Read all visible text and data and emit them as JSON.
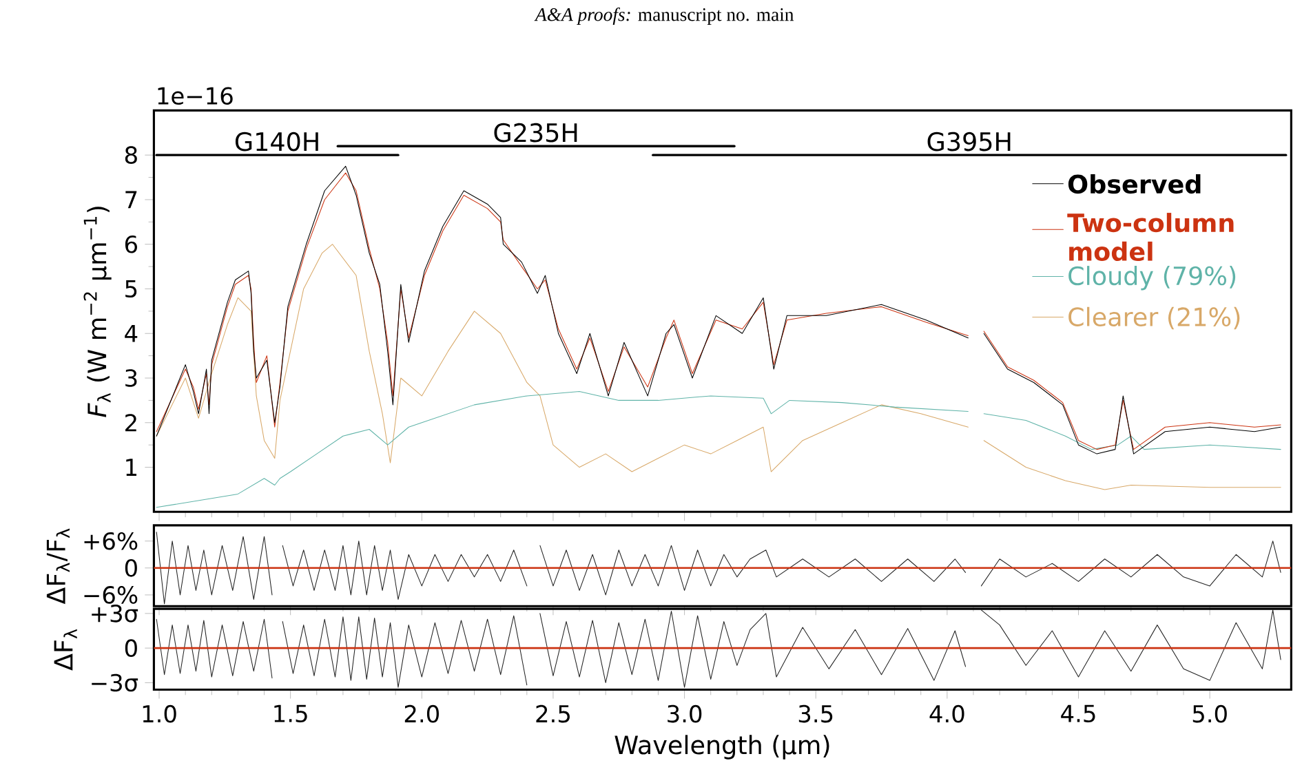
{
  "chart_data": [
    {
      "type": "line",
      "ylabel": "*F*$_{λ}$ (W m$^{−2}$ µm$^{−1}$)",
      "xlim": [
        0.98,
        5.31
      ],
      "ylim": [
        0,
        9
      ],
      "xticks": [
        {
          "value": 1,
          "label": null
        },
        {
          "value": 1.5,
          "label": null
        },
        {
          "value": 2,
          "label": null
        },
        {
          "value": 2.5,
          "label": null
        },
        {
          "value": 3,
          "label": null
        },
        {
          "value": 3.5,
          "label": null
        },
        {
          "value": 4,
          "label": null
        },
        {
          "value": 4.5,
          "label": null
        },
        {
          "value": 5,
          "label": null
        }
      ],
      "yticks": [
        1,
        2,
        3,
        4,
        5,
        6,
        7,
        8
      ],
      "tick_labels": "y",
      "legend": "top right",
      "annotations": [
        "*A&A proofs:* manuscript no. main",
        "1e−16"
      ],
      "series": [
        {
          "name": "G140H",
          "color": "#000000",
          "x": [
            0.99,
            1.91
          ],
          "values": [
            8.0,
            8.0
          ]
        },
        {
          "name": "G235H",
          "color": "#000000",
          "x": [
            1.68,
            3.19
          ],
          "values": [
            8.2,
            8.2
          ]
        },
        {
          "name": "G395H",
          "color": "#000000",
          "x": [
            2.88,
            5.29
          ],
          "values": [
            8.0,
            8.0
          ]
        },
        {
          "name": "Observed",
          "color": "#000000",
          "x": [
            0.99,
            1.1,
            1.13,
            1.15,
            1.18,
            1.19,
            1.2,
            1.26,
            1.29,
            1.34,
            1.35,
            1.36,
            1.37,
            1.41,
            1.44,
            1.46,
            1.49,
            1.56,
            1.63,
            1.71,
            1.75,
            1.8,
            1.84,
            1.87,
            1.89,
            1.92,
            1.95,
            2.01,
            2.08,
            2.16,
            2.25,
            2.3,
            2.31,
            2.38,
            2.44,
            2.47,
            2.52,
            2.59,
            2.64,
            2.71,
            2.77,
            2.86,
            2.93,
            2.96,
            3.03,
            3.12,
            3.22,
            3.3,
            3.34,
            3.39,
            3.54,
            3.75,
            3.92,
            4.08,
            4.11,
            4.14,
            4.23,
            4.33,
            4.44,
            4.5,
            4.57,
            4.64,
            4.67,
            4.71,
            4.83,
            5.0,
            5.17,
            5.27
          ],
          "values": [
            1.7,
            3.3,
            2.7,
            2.2,
            3.2,
            2.2,
            3.4,
            4.7,
            5.2,
            5.4,
            4.9,
            3.6,
            3.0,
            3.4,
            2.0,
            2.8,
            4.6,
            6.0,
            7.2,
            7.75,
            7.1,
            5.8,
            5.1,
            3.6,
            2.4,
            5.1,
            3.8,
            5.4,
            6.4,
            7.2,
            6.9,
            6.6,
            6.0,
            5.6,
            4.9,
            5.3,
            4.0,
            3.1,
            4.0,
            2.6,
            3.8,
            2.6,
            4.0,
            4.2,
            3.0,
            4.4,
            4.0,
            4.8,
            3.2,
            4.4,
            4.4,
            4.65,
            4.3,
            3.9,
            null,
            4.0,
            3.2,
            2.9,
            2.4,
            1.5,
            1.3,
            1.4,
            2.6,
            1.3,
            1.8,
            1.9,
            1.8,
            1.9
          ]
        },
        {
          "name": "Two-column model",
          "color": "#cc3311",
          "x": [
            0.99,
            1.1,
            1.13,
            1.15,
            1.18,
            1.19,
            1.2,
            1.26,
            1.29,
            1.34,
            1.35,
            1.36,
            1.37,
            1.41,
            1.44,
            1.46,
            1.49,
            1.56,
            1.63,
            1.71,
            1.75,
            1.8,
            1.84,
            1.87,
            1.89,
            1.92,
            1.95,
            2.01,
            2.08,
            2.16,
            2.25,
            2.3,
            2.31,
            2.38,
            2.44,
            2.47,
            2.52,
            2.59,
            2.64,
            2.71,
            2.77,
            2.86,
            2.93,
            2.96,
            3.03,
            3.12,
            3.22,
            3.3,
            3.34,
            3.39,
            3.54,
            3.75,
            3.92,
            4.08,
            4.11,
            4.14,
            4.23,
            4.33,
            4.44,
            4.5,
            4.57,
            4.64,
            4.67,
            4.71,
            4.83,
            5.0,
            5.17,
            5.27
          ],
          "values": [
            1.8,
            3.2,
            2.8,
            2.3,
            3.1,
            2.4,
            3.3,
            4.6,
            5.1,
            5.3,
            5.0,
            3.8,
            2.9,
            3.5,
            1.9,
            2.9,
            4.5,
            5.9,
            7.0,
            7.6,
            7.2,
            5.9,
            5.0,
            3.8,
            2.6,
            5.0,
            3.9,
            5.3,
            6.3,
            7.1,
            6.8,
            6.5,
            6.1,
            5.5,
            5.0,
            5.2,
            4.1,
            3.2,
            3.9,
            2.7,
            3.7,
            2.8,
            3.9,
            4.3,
            3.1,
            4.3,
            4.1,
            4.7,
            3.3,
            4.3,
            4.45,
            4.6,
            4.25,
            3.95,
            null,
            4.05,
            3.25,
            2.95,
            2.45,
            1.6,
            1.4,
            1.5,
            2.5,
            1.4,
            1.9,
            2.0,
            1.9,
            1.95
          ]
        },
        {
          "name": "Cloudy (79%)",
          "color": "#5fb3a8",
          "x": [
            0.99,
            1.3,
            1.4,
            1.44,
            1.46,
            1.5,
            1.6,
            1.7,
            1.8,
            1.87,
            1.95,
            2.0,
            2.2,
            2.4,
            2.6,
            2.75,
            2.9,
            3.1,
            3.3,
            3.33,
            3.4,
            3.6,
            3.8,
            4.08,
            4.11,
            4.14,
            4.3,
            4.45,
            4.55,
            4.65,
            4.7,
            4.75,
            5.0,
            5.27
          ],
          "values": [
            0.1,
            0.4,
            0.75,
            0.6,
            0.75,
            0.9,
            1.3,
            1.7,
            1.85,
            1.5,
            1.9,
            2.0,
            2.4,
            2.6,
            2.7,
            2.5,
            2.5,
            2.6,
            2.55,
            2.2,
            2.5,
            2.45,
            2.35,
            2.25,
            null,
            2.2,
            2.05,
            1.7,
            1.4,
            1.5,
            1.7,
            1.4,
            1.5,
            1.4
          ]
        },
        {
          "name": "Clearer (21%)",
          "color": "#d8a868",
          "x": [
            0.99,
            1.1,
            1.15,
            1.2,
            1.26,
            1.3,
            1.35,
            1.37,
            1.4,
            1.44,
            1.46,
            1.55,
            1.62,
            1.66,
            1.75,
            1.8,
            1.85,
            1.88,
            1.92,
            2.0,
            2.1,
            2.2,
            2.3,
            2.4,
            2.45,
            2.5,
            2.6,
            2.7,
            2.8,
            2.9,
            3.0,
            3.1,
            3.2,
            3.3,
            3.33,
            3.45,
            3.6,
            3.75,
            3.9,
            4.08,
            4.11,
            4.14,
            4.3,
            4.45,
            4.6,
            4.7,
            5.0,
            5.27
          ],
          "values": [
            1.7,
            3.0,
            2.1,
            3.1,
            4.2,
            4.8,
            4.5,
            2.6,
            1.6,
            1.2,
            2.5,
            5.0,
            5.8,
            6.0,
            5.3,
            3.6,
            2.2,
            1.1,
            3.0,
            2.6,
            3.6,
            4.5,
            4.0,
            2.9,
            2.6,
            1.5,
            1.0,
            1.3,
            0.9,
            1.2,
            1.5,
            1.3,
            1.6,
            1.9,
            0.9,
            1.6,
            2.0,
            2.4,
            2.2,
            1.9,
            null,
            1.6,
            1.0,
            0.7,
            0.5,
            0.6,
            0.55,
            0.55
          ]
        }
      ]
    },
    {
      "type": "line",
      "ylabel": "ΔF$_{λ}$/F$_{λ}$",
      "xlim": [
        0.98,
        5.31
      ],
      "ylim": [
        -8.5,
        9.5
      ],
      "xticks": [
        {
          "value": 1,
          "label": null
        },
        {
          "value": 1.5,
          "label": null
        },
        {
          "value": 2,
          "label": null
        },
        {
          "value": 2.5,
          "label": null
        },
        {
          "value": 3,
          "label": null
        },
        {
          "value": 3.5,
          "label": null
        },
        {
          "value": 4,
          "label": null
        },
        {
          "value": 4.5,
          "label": null
        },
        {
          "value": 5,
          "label": null
        }
      ],
      "yticks": [
        {
          "value": 6,
          "label": "+6%"
        },
        0,
        {
          "value": -6,
          "label": "−6%"
        }
      ],
      "tick_labels": "y",
      "ref_lines": [
        {
          "axis": "y",
          "value": 0,
          "color": "#cc3311"
        }
      ],
      "series": [
        {
          "color": "#222222",
          "x": [
            0.99,
            1.02,
            1.05,
            1.08,
            1.11,
            1.14,
            1.17,
            1.2,
            1.24,
            1.28,
            1.32,
            1.36,
            1.4,
            1.43,
            1.45,
            1.47,
            1.51,
            1.55,
            1.59,
            1.63,
            1.67,
            1.7,
            1.73,
            1.76,
            1.79,
            1.82,
            1.85,
            1.88,
            1.91,
            1.95,
            2.0,
            2.05,
            2.1,
            2.15,
            2.2,
            2.25,
            2.3,
            2.35,
            2.4,
            2.435,
            2.45,
            2.5,
            2.55,
            2.6,
            2.65,
            2.7,
            2.75,
            2.8,
            2.85,
            2.9,
            2.95,
            3.0,
            3.05,
            3.1,
            3.15,
            3.2,
            3.25,
            3.31,
            3.35,
            3.45,
            3.55,
            3.65,
            3.75,
            3.85,
            3.95,
            4.03,
            4.07,
            4.1,
            4.13,
            4.2,
            4.3,
            4.4,
            4.5,
            4.6,
            4.7,
            4.8,
            4.9,
            5.0,
            5.1,
            5.2,
            5.24,
            5.27
          ],
          "values": [
            8,
            -8,
            6,
            -6,
            5,
            -5,
            4,
            -6,
            5,
            -5,
            7,
            -7,
            7,
            -6,
            null,
            5,
            -4,
            4,
            -5,
            4,
            -5,
            5,
            -6,
            6,
            -6,
            5,
            -5,
            4,
            -7,
            3,
            -4,
            3,
            -3,
            3,
            -2,
            3,
            -3,
            4,
            -4,
            null,
            5,
            -4,
            4,
            -5,
            3,
            -6,
            4,
            -4,
            3,
            -4,
            5,
            -5,
            4,
            -4,
            3,
            -2,
            2,
            4,
            -2,
            2,
            -2,
            2,
            -3,
            2,
            -3,
            2,
            -1,
            null,
            -4,
            2,
            -2,
            1,
            -3,
            2,
            -2,
            3,
            -2,
            -4,
            3,
            -2,
            6,
            -1
          ]
        }
      ]
    },
    {
      "type": "line",
      "ylabel": "ΔF$_{λ}$",
      "xlabel": "Wavelength (µm)",
      "xlim": [
        0.98,
        5.31
      ],
      "ylim": [
        -3.6,
        3.4
      ],
      "xticks": [
        {
          "value": 1,
          "label": "1.0"
        },
        {
          "value": 1.5,
          "label": "1.5"
        },
        {
          "value": 2,
          "label": "2.0"
        },
        {
          "value": 2.5,
          "label": "2.5"
        },
        {
          "value": 3,
          "label": "3.0"
        },
        {
          "value": 3.5,
          "label": "3.5"
        },
        {
          "value": 4,
          "label": "4.0"
        },
        {
          "value": 4.5,
          "label": "4.5"
        },
        {
          "value": 5,
          "label": "5.0"
        }
      ],
      "yticks": [
        {
          "value": 3,
          "label": "+3σ"
        },
        0,
        {
          "value": -3,
          "label": "−3σ"
        }
      ],
      "ref_lines": [
        {
          "axis": "y",
          "value": 0,
          "color": "#cc3311"
        }
      ],
      "series": [
        {
          "color": "#222222",
          "x": [
            0.99,
            1.02,
            1.05,
            1.08,
            1.11,
            1.14,
            1.17,
            1.2,
            1.24,
            1.28,
            1.32,
            1.36,
            1.4,
            1.43,
            1.45,
            1.47,
            1.51,
            1.55,
            1.59,
            1.63,
            1.67,
            1.7,
            1.73,
            1.76,
            1.79,
            1.82,
            1.85,
            1.88,
            1.91,
            1.95,
            2.0,
            2.05,
            2.1,
            2.15,
            2.2,
            2.25,
            2.3,
            2.35,
            2.4,
            2.435,
            2.45,
            2.5,
            2.55,
            2.6,
            2.65,
            2.7,
            2.75,
            2.8,
            2.85,
            2.9,
            2.95,
            3.0,
            3.05,
            3.1,
            3.15,
            3.2,
            3.25,
            3.31,
            3.35,
            3.45,
            3.55,
            3.65,
            3.75,
            3.85,
            3.95,
            4.03,
            4.07,
            4.1,
            4.13,
            4.2,
            4.3,
            4.4,
            4.5,
            4.6,
            4.7,
            4.8,
            4.9,
            5.0,
            5.1,
            5.2,
            5.24,
            5.27
          ],
          "values": [
            2.5,
            -2.3,
            2,
            -2.2,
            2,
            -2,
            2.4,
            -2.5,
            2,
            -2.4,
            2.3,
            -2,
            2.5,
            -2.6,
            null,
            2.3,
            -2.2,
            2,
            -2.4,
            2.5,
            -2.5,
            2.7,
            -2.8,
            2.7,
            -2.7,
            2.6,
            -2.5,
            2.2,
            -3.4,
            2,
            -2.5,
            2.2,
            -2.2,
            2.4,
            -2,
            2.5,
            -2.3,
            2.8,
            -3.2,
            null,
            3,
            -2.4,
            2.3,
            -2.5,
            2.4,
            -3.0,
            2.2,
            -2.3,
            2.5,
            -2.8,
            3.2,
            -3.4,
            2.8,
            -2.7,
            2.3,
            -1.5,
            1.6,
            3.0,
            -2.5,
            1.8,
            -1.8,
            1.6,
            -2.3,
            1.7,
            -2.8,
            1.5,
            -1.6,
            null,
            3.3,
            2.0,
            -1.5,
            1.5,
            -2.5,
            1.5,
            -2,
            2,
            -1.8,
            -2.8,
            2.2,
            -1.8,
            3.3,
            -1.0
          ]
        }
      ]
    }
  ]
}
